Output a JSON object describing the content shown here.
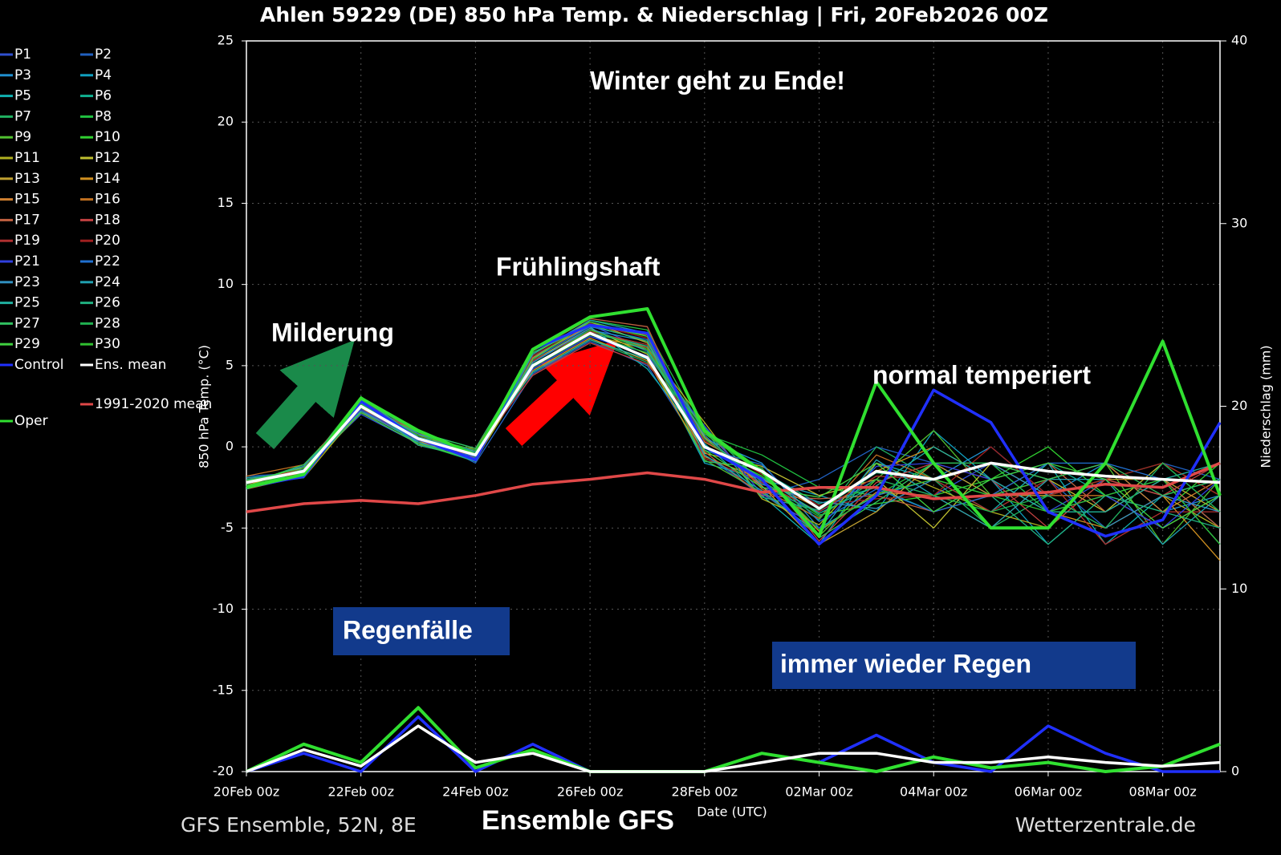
{
  "chart_data": {
    "type": "line",
    "title": "Ahlen 59229 (DE)  850 hPa Temp. & Niederschlag | Fri, 20Feb2026 00Z",
    "ylabel": "850 hPa Temp. (°C)",
    "y2label": "Niederschlag (mm)",
    "xlabel": "Date (UTC)",
    "footer_left": "GFS Ensemble, 52N, 8E",
    "footer_center": "Ensemble GFS",
    "footer_right": "Wetterzentrale.de",
    "annotations": [
      "Winter geht zu Ende!",
      "Frühlingshaft",
      "Milderung",
      "normal temperiert",
      "Regenfälle",
      "immer wieder Regen"
    ],
    "grid": true,
    "x": [
      0,
      1,
      2,
      3,
      4,
      5,
      6,
      7,
      8,
      9,
      10,
      11,
      12,
      13,
      14,
      15,
      16,
      17
    ],
    "xlim": [
      0,
      17
    ],
    "xticks": [
      {
        "value": 0,
        "label": "20Feb 00z"
      },
      {
        "value": 2,
        "label": "22Feb 00z"
      },
      {
        "value": 4,
        "label": "24Feb 00z"
      },
      {
        "value": 6,
        "label": "26Feb 00z"
      },
      {
        "value": 8,
        "label": "28Feb 00z"
      },
      {
        "value": 10,
        "label": "02Mar 00z"
      },
      {
        "value": 12,
        "label": "04Mar 00z"
      },
      {
        "value": 14,
        "label": "06Mar 00z"
      },
      {
        "value": 16,
        "label": "08Mar 00z"
      }
    ],
    "ylim": [
      -20,
      25
    ],
    "yticks": [
      -20,
      -15,
      -10,
      -5,
      0,
      5,
      10,
      15,
      20,
      25
    ],
    "y2lim": [
      0,
      40
    ],
    "y2ticks": [
      0,
      10,
      20,
      30,
      40
    ],
    "series": [
      {
        "name": "P1",
        "color": "#3050d0",
        "values": [
          -2,
          -1.4,
          2,
          0.2,
          -0.3,
          5.5,
          7.5,
          6,
          1,
          -2.5,
          -4,
          -2,
          -3,
          -1,
          -4,
          -2,
          -3,
          -4
        ]
      },
      {
        "name": "P2",
        "color": "#2060c0",
        "values": [
          -1.8,
          -1.6,
          3,
          0.8,
          -1,
          4.5,
          6.5,
          5,
          -0.5,
          -3,
          -2,
          0,
          -1,
          -3,
          -2,
          -5,
          -1,
          -2
        ]
      },
      {
        "name": "P3",
        "color": "#2090d0",
        "values": [
          -2.4,
          -1.2,
          2.4,
          0.4,
          -0.2,
          5.2,
          7.2,
          6.5,
          0.5,
          -1,
          -5,
          -3,
          -2,
          0,
          -3,
          -1,
          -4,
          -3
        ]
      },
      {
        "name": "P4",
        "color": "#10a0c0",
        "values": [
          -2.1,
          -1.8,
          2.7,
          0.1,
          -0.7,
          4.8,
          6.8,
          5.8,
          -1,
          -2,
          -3,
          -4,
          1,
          -2,
          -6,
          -3,
          -2,
          -5
        ]
      },
      {
        "name": "P5",
        "color": "#10b0b0",
        "values": [
          -2.6,
          -1.3,
          2.2,
          0.6,
          -0.4,
          5.6,
          7.4,
          4.8,
          0.2,
          -3,
          -6,
          -1,
          -2,
          -4,
          -1,
          -6,
          -3,
          -2
        ]
      },
      {
        "name": "P6",
        "color": "#10b090",
        "values": [
          -2,
          -1.5,
          2.9,
          0.3,
          -0.6,
          5,
          7.1,
          6.2,
          -0.2,
          -1.5,
          -3.5,
          -2.5,
          -4,
          -2,
          -1,
          -3,
          -5,
          -3
        ]
      },
      {
        "name": "P7",
        "color": "#20b060",
        "values": [
          -1.9,
          -1.7,
          2.5,
          0.9,
          -0.1,
          4.6,
          6.6,
          5.2,
          1.2,
          -2.2,
          -4.5,
          0,
          -2,
          -5,
          -3,
          -2,
          -1,
          -4
        ]
      },
      {
        "name": "P8",
        "color": "#20c040",
        "values": [
          -2.3,
          -1.1,
          2.6,
          0.2,
          -0.9,
          5.4,
          7.8,
          7.2,
          0.8,
          -0.5,
          -2.5,
          -3,
          -1,
          -1,
          -4,
          -4,
          -2,
          -6
        ]
      },
      {
        "name": "P9",
        "color": "#50c030",
        "values": [
          -2.5,
          -1.6,
          2.1,
          0.7,
          -0.3,
          5.1,
          7,
          5.5,
          -0.8,
          -2.8,
          -5.5,
          -2,
          1,
          -3,
          -2,
          -1,
          -6,
          -2
        ]
      },
      {
        "name": "P10",
        "color": "#30d030",
        "values": [
          -2.2,
          -1.4,
          3.1,
          0.5,
          -0.5,
          5.8,
          7.6,
          6.8,
          0,
          -1.8,
          -4.2,
          -3.5,
          -3,
          -2,
          0,
          -3,
          -4,
          -1
        ]
      },
      {
        "name": "P11",
        "color": "#b0b020",
        "values": [
          -2,
          -1.9,
          2.3,
          0.4,
          -0.8,
          4.9,
          6.9,
          6,
          1.5,
          -3.2,
          -4.8,
          -1,
          -2.5,
          -4,
          -5,
          -2,
          -3,
          -5
        ]
      },
      {
        "name": "P12",
        "color": "#c0c030",
        "values": [
          -2.4,
          -1.2,
          2.8,
          0.1,
          -0.2,
          5.3,
          7.3,
          5.7,
          -0.4,
          -1.2,
          -3,
          -2,
          -5,
          -1,
          -2,
          -4,
          -1,
          -3
        ]
      },
      {
        "name": "P13",
        "color": "#c0a030",
        "values": [
          -2.1,
          -1.5,
          2.5,
          0.8,
          -0.6,
          5.7,
          7.7,
          6.4,
          0.6,
          -2.4,
          -6,
          -4,
          -1,
          -3,
          -3,
          -2,
          -2,
          -4
        ]
      },
      {
        "name": "P14",
        "color": "#d09020",
        "values": [
          -2.3,
          -1.3,
          2.2,
          0.3,
          -0.4,
          4.7,
          6.7,
          5.3,
          -0.6,
          -2,
          -3.8,
          -1.5,
          0,
          -2,
          -4,
          -5,
          -3,
          -7
        ]
      },
      {
        "name": "P15",
        "color": "#d08030",
        "values": [
          -2.6,
          -1.8,
          3,
          0.6,
          -0.9,
          5.5,
          7.5,
          6.9,
          0.3,
          -1.6,
          -5.2,
          -2.8,
          -3,
          -5,
          -2,
          -1,
          -4,
          -2
        ]
      },
      {
        "name": "P16",
        "color": "#c07020",
        "values": [
          -1.8,
          -1.1,
          2.4,
          0.2,
          -0.1,
          5,
          7.2,
          6.1,
          1.1,
          -2.6,
          -4.4,
          -0.5,
          -2,
          -1,
          -3,
          -3,
          -5,
          -3
        ]
      },
      {
        "name": "P17",
        "color": "#c06040",
        "values": [
          -2.2,
          -1.6,
          2.7,
          0.9,
          -0.7,
          5.9,
          7.9,
          7.4,
          -0.3,
          -3,
          -3.2,
          -3,
          -4,
          -3,
          -1,
          -4,
          -2,
          -5
        ]
      },
      {
        "name": "P18",
        "color": "#c04040",
        "values": [
          -2.5,
          -1.4,
          2.1,
          0.5,
          -0.3,
          4.4,
          6.4,
          5.1,
          0.9,
          -1.4,
          -5.8,
          -2.2,
          -1,
          -2,
          -5,
          -2,
          -3,
          -1
        ]
      },
      {
        "name": "P19",
        "color": "#b03030",
        "values": [
          -2,
          -1.7,
          2.6,
          0.1,
          -0.5,
          5.3,
          7.1,
          6.3,
          -0.7,
          -2.2,
          -4,
          -1.8,
          -2,
          -4,
          -2,
          -6,
          -4,
          -4
        ]
      },
      {
        "name": "P20",
        "color": "#a02020",
        "values": [
          -2.3,
          -1.3,
          2.9,
          0.7,
          -0.8,
          5.6,
          7.6,
          6.7,
          0.4,
          -1.7,
          -3.6,
          -3.2,
          -3,
          0,
          -3,
          -2,
          -1,
          -3
        ]
      },
      {
        "name": "P21",
        "color": "#3040e0",
        "values": [
          -2.1,
          -1.5,
          2.3,
          0.4,
          -0.2,
          4.8,
          6.8,
          5.6,
          1.3,
          -2.9,
          -5,
          -1.2,
          -1,
          -2,
          -4,
          -3,
          -5,
          -2
        ]
      },
      {
        "name": "P22",
        "color": "#2070d0",
        "values": [
          -2.4,
          -1.9,
          2.8,
          0.2,
          -0.6,
          5.4,
          7.4,
          6.6,
          -0.1,
          -1.1,
          -4.6,
          -2.6,
          -4,
          -3,
          -1,
          -1,
          -2,
          -6
        ]
      },
      {
        "name": "P23",
        "color": "#3090c0",
        "values": [
          -2.2,
          -1.2,
          2.5,
          0.8,
          -0.4,
          5.2,
          7.3,
          5.9,
          0.7,
          -2.3,
          -3.4,
          -3.8,
          -2,
          -1,
          -3,
          -5,
          -3,
          -4
        ]
      },
      {
        "name": "P24",
        "color": "#20a0b0",
        "values": [
          -1.9,
          -1.6,
          2.2,
          0.3,
          -0.9,
          5.7,
          7.8,
          7,
          -0.5,
          -2.7,
          -5.4,
          -0.8,
          -3,
          -5,
          -2,
          -2,
          -6,
          -3
        ]
      },
      {
        "name": "P25",
        "color": "#20b0a0",
        "values": [
          -2.6,
          -1.4,
          3,
          0.6,
          -0.3,
          4.6,
          6.6,
          5.4,
          0.1,
          -1.9,
          -4.1,
          -2.4,
          0,
          -2,
          -4,
          -4,
          -2,
          -1
        ]
      },
      {
        "name": "P26",
        "color": "#20b080",
        "values": [
          -2,
          -1.8,
          2.7,
          0.1,
          -0.7,
          5.1,
          7,
          6.2,
          1,
          -3.1,
          -3.9,
          -1.6,
          -2,
          -3,
          -6,
          -3,
          -4,
          -5
        ]
      },
      {
        "name": "P27",
        "color": "#30c060",
        "values": [
          -2.3,
          -1.1,
          2.4,
          0.9,
          -0.1,
          5.8,
          7.5,
          6.5,
          -0.9,
          -1.3,
          -5.6,
          -3.4,
          -1,
          -1,
          -2,
          -1,
          -3,
          -2
        ]
      },
      {
        "name": "P28",
        "color": "#20b050",
        "values": [
          -2.5,
          -1.7,
          2.9,
          0.5,
          -0.5,
          4.9,
          6.9,
          5.8,
          0.5,
          -2.1,
          -4.3,
          -2,
          -3,
          -4,
          -3,
          -5,
          -1,
          -4
        ]
      },
      {
        "name": "P29",
        "color": "#40d040",
        "values": [
          -2.1,
          -1.3,
          2.1,
          0.2,
          -0.8,
          5.4,
          7.7,
          6.8,
          -0.2,
          -2.5,
          -3.1,
          -1,
          -4,
          -2,
          -1,
          -2,
          -5,
          -3
        ]
      },
      {
        "name": "P30",
        "color": "#30c030",
        "values": [
          -2.4,
          -1.5,
          2.6,
          0.7,
          -0.2,
          5,
          7.2,
          6,
          0.8,
          -1.6,
          -5.1,
          -2.9,
          -2,
          -3,
          -4,
          -3,
          -2,
          -6
        ]
      },
      {
        "name": "Control",
        "color": "#2030ff",
        "values": [
          -2.5,
          -1.8,
          2.8,
          0.5,
          -0.8,
          6,
          7.5,
          7,
          0,
          -2,
          -6,
          -3,
          3.5,
          1.5,
          -4,
          -5.5,
          -4.5,
          1.5
        ],
        "precip": [
          0,
          1,
          0,
          3,
          0,
          1.5,
          0,
          0,
          0,
          1,
          0.5,
          2,
          0.5,
          0,
          2.5,
          1,
          0,
          0
        ]
      },
      {
        "name": "Ens. mean",
        "color": "#ffffff",
        "values": [
          -2.2,
          -1.5,
          2.5,
          0.5,
          -0.5,
          5,
          7,
          5.5,
          0,
          -1.5,
          -3.8,
          -1.5,
          -2,
          -1,
          -1.5,
          -1.8,
          -2,
          -2.2
        ],
        "precip": [
          0,
          1.2,
          0.3,
          2.5,
          0.5,
          1,
          0,
          0,
          0,
          0.5,
          1,
          1,
          0.5,
          0.5,
          0.8,
          0.5,
          0.3,
          0.5
        ]
      },
      {
        "name": "1991-2020 mean",
        "color": "#e04848",
        "values": [
          -4,
          -3.5,
          -3.3,
          -3.5,
          -3,
          -2.3,
          -2,
          -1.6,
          -2,
          -2.8,
          -2.5,
          -2.5,
          -3.2,
          -3,
          -2.8,
          -2.3,
          -2.5,
          -1
        ]
      },
      {
        "name": "Oper",
        "color": "#30e030",
        "values": [
          -2.5,
          -1.7,
          3,
          1,
          -0.5,
          6,
          8,
          8.5,
          1,
          -1.5,
          -5.5,
          4,
          -1,
          -5,
          -5,
          -1,
          6.5,
          -3
        ],
        "precip": [
          0,
          1.5,
          0.5,
          3.5,
          0.2,
          1.2,
          0,
          0,
          0,
          1,
          0.5,
          0,
          0.8,
          0.2,
          0.5,
          0,
          0.3,
          1.5
        ]
      }
    ]
  }
}
